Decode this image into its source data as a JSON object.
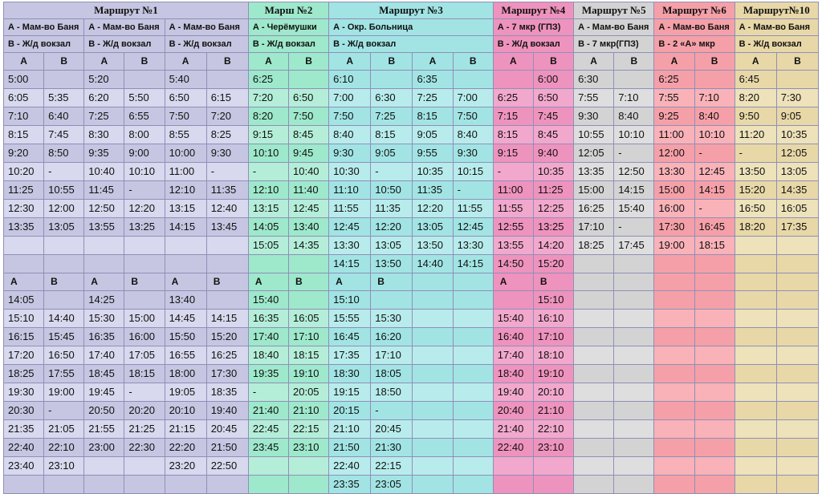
{
  "routes": [
    {
      "title": "Маршрут №1",
      "span": 6,
      "sub_a": [
        "А - Мам-во Баня",
        "А - Мам-во Баня",
        "А - Мам-во Баня"
      ],
      "sub_b": [
        "В - Ж/д вокзал",
        "В - Ж/д вокзал",
        "В - Ж/д вокзал"
      ]
    },
    {
      "title": "Марш №2",
      "span": 2,
      "sub_a": [
        "А - Черёмушки"
      ],
      "sub_b": [
        "В - Ж/д вокзал"
      ]
    },
    {
      "title": "Маршрут №3",
      "span": 4,
      "sub_a": [
        "А - Окр. Больница"
      ],
      "sub_b": [
        "В - Ж/д вокзал"
      ]
    },
    {
      "title": "Маршрут №4",
      "span": 2,
      "sub_a": [
        "А - 7 мкр (ГПЗ)"
      ],
      "sub_b": [
        "В - Ж/д вокзал"
      ]
    },
    {
      "title": "Маршрут №5",
      "span": 2,
      "sub_a": [
        "А - Мам-во Баня"
      ],
      "sub_b": [
        "В - 7 мкр(ГПЗ)"
      ]
    },
    {
      "title": "Маршрут №6",
      "span": 2,
      "sub_a": [
        "А - Мам-во Баня"
      ],
      "sub_b": [
        "В - 2 «А» мкр"
      ]
    },
    {
      "title": "Маршрут№10",
      "span": 2,
      "sub_a": [
        "А - Мам-во Баня"
      ],
      "sub_b": [
        "В - Ж/д вокзал"
      ]
    }
  ],
  "ab_row": [
    "А",
    "В",
    "А",
    "В",
    "А",
    "В",
    "А",
    "В",
    "А",
    "В",
    "А",
    "В",
    "А",
    "В",
    "А",
    "В",
    "А",
    "В",
    "А",
    "В"
  ],
  "morning": [
    [
      "5:00",
      "",
      "5:20",
      "",
      "5:40",
      "",
      "6:25",
      "",
      "6:10",
      "",
      "6:35",
      "",
      "",
      "6:00",
      "6:30",
      "",
      "6:25",
      "",
      "6:45",
      ""
    ],
    [
      "6:05",
      "5:35",
      "6:20",
      "5:50",
      "6:50",
      "6:15",
      "7:20",
      "6:50",
      "7:00",
      "6:30",
      "7:25",
      "7:00",
      "6:25",
      "6:50",
      "7:55",
      "7:10",
      "7:55",
      "7:10",
      "8:20",
      "7:30"
    ],
    [
      "7:10",
      "6:40",
      "7:25",
      "6:55",
      "7:50",
      "7:20",
      "8:20",
      "7:50",
      "7:50",
      "7:25",
      "8:15",
      "7:50",
      "7:15",
      "7:45",
      "9:30",
      "8:40",
      "9:25",
      "8:40",
      "9:50",
      "9:05"
    ],
    [
      "8:15",
      "7:45",
      "8:30",
      "8:00",
      "8:55",
      "8:25",
      "9:15",
      "8:45",
      "8:40",
      "8:15",
      "9:05",
      "8:40",
      "8:15",
      "8:45",
      "10:55",
      "10:10",
      "11:00",
      "10:10",
      "11:20",
      "10:35"
    ],
    [
      "9:20",
      "8:50",
      "9:35",
      "9:00",
      "10:00",
      "9:30",
      "10:10",
      "9:45",
      "9:30",
      "9:05",
      "9:55",
      "9:30",
      "9:15",
      "9:40",
      "12:05",
      "-",
      "12:00",
      "-",
      "-",
      "12:05"
    ],
    [
      "10:20",
      "-",
      "10:40",
      "10:10",
      "11:00",
      "-",
      "-",
      "10:40",
      "10:30",
      "-",
      "10:35",
      "10:15",
      "-",
      "10:35",
      "13:35",
      "12:50",
      "13:30",
      "12:45",
      "13:50",
      "13:05"
    ],
    [
      "11:25",
      "10:55",
      "11:45",
      "-",
      "12:10",
      "11:35",
      "12:10",
      "11:40",
      "11:10",
      "10:50",
      "11:35",
      "-",
      "11:00",
      "11:25",
      "15:00",
      "14:15",
      "15:00",
      "14:15",
      "15:20",
      "14:35"
    ],
    [
      "12:30",
      "12:00",
      "12:50",
      "12:20",
      "13:15",
      "12:40",
      "13:15",
      "12:45",
      "11:55",
      "11:35",
      "12:20",
      "11:55",
      "11:55",
      "12:25",
      "16:25",
      "15:40",
      "16:00",
      "-",
      "16:50",
      "16:05"
    ],
    [
      "13:35",
      "13:05",
      "13:55",
      "13:25",
      "14:15",
      "13:45",
      "14:05",
      "13:40",
      "12:45",
      "12:20",
      "13:05",
      "12:45",
      "12:55",
      "13:25",
      "17:10",
      "-",
      "17:30",
      "16:45",
      "18:20",
      "17:35"
    ],
    [
      "",
      "",
      "",
      "",
      "",
      "",
      "15:05",
      "14:35",
      "13:30",
      "13:05",
      "13:50",
      "13:30",
      "13:55",
      "14:20",
      "18:25",
      "17:45",
      "19:00",
      "18:15",
      "",
      ""
    ],
    [
      "",
      "",
      "",
      "",
      "",
      "",
      "",
      "",
      "14:15",
      "13:50",
      "14:40",
      "14:15",
      "14:50",
      "15:20",
      "",
      "",
      "",
      "",
      "",
      ""
    ]
  ],
  "ab_row2": [
    "А",
    "В",
    "А",
    "В",
    "А",
    "В",
    "А",
    "В",
    "А",
    "В",
    "",
    "",
    "А",
    "В",
    "",
    "",
    "",
    "",
    "",
    ""
  ],
  "afternoon": [
    [
      "14:05",
      "",
      "14:25",
      "",
      "13:40",
      "",
      "15:40",
      "",
      "15:10",
      "",
      "",
      "",
      "",
      "15:10",
      "",
      "",
      "",
      "",
      "",
      ""
    ],
    [
      "15:10",
      "14:40",
      "15:30",
      "15:00",
      "14:45",
      "14:15",
      "16:35",
      "16:05",
      "15:55",
      "15:30",
      "",
      "",
      "15:40",
      "16:10",
      "",
      "",
      "",
      "",
      "",
      ""
    ],
    [
      "16:15",
      "15:45",
      "16:35",
      "16:00",
      "15:50",
      "15:20",
      "17:40",
      "17:10",
      "16:45",
      "16:20",
      "",
      "",
      "16:40",
      "17:10",
      "",
      "",
      "",
      "",
      "",
      ""
    ],
    [
      "17:20",
      "16:50",
      "17:40",
      "17:05",
      "16:55",
      "16:25",
      "18:40",
      "18:15",
      "17:35",
      "17:10",
      "",
      "",
      "17:40",
      "18:10",
      "",
      "",
      "",
      "",
      "",
      ""
    ],
    [
      "18:25",
      "17:55",
      "18:45",
      "18:15",
      "18:00",
      "17:30",
      "19:35",
      "19:10",
      "18:30",
      "18:05",
      "",
      "",
      "18:40",
      "19:10",
      "",
      "",
      "",
      "",
      "",
      ""
    ],
    [
      "19:30",
      "19:00",
      "19:45",
      "-",
      "19:05",
      "18:35",
      "-",
      "20:05",
      "19:15",
      "18:50",
      "",
      "",
      "19:40",
      "20:10",
      "",
      "",
      "",
      "",
      "",
      ""
    ],
    [
      "20:30",
      "-",
      "20:50",
      "20:20",
      "20:10",
      "19:40",
      "21:40",
      "21:10",
      "20:15",
      "-",
      "",
      "",
      "20:40",
      "21:10",
      "",
      "",
      "",
      "",
      "",
      ""
    ],
    [
      "21:35",
      "21:05",
      "21:55",
      "21:25",
      "21:15",
      "20:45",
      "22:45",
      "22:15",
      "21:10",
      "20:45",
      "",
      "",
      "21:40",
      "22:10",
      "",
      "",
      "",
      "",
      "",
      ""
    ],
    [
      "22:40",
      "22:10",
      "23:00",
      "22:30",
      "22:20",
      "21:50",
      "23:45",
      "23:10",
      "21:50",
      "21:30",
      "",
      "",
      "22:40",
      "23:10",
      "",
      "",
      "",
      "",
      "",
      ""
    ],
    [
      "23:40",
      "23:10",
      "",
      "",
      "23:20",
      "22:50",
      "",
      "",
      "22:40",
      "22:15",
      "",
      "",
      "",
      "",
      "",
      "",
      "",
      "",
      "",
      ""
    ],
    [
      "",
      "",
      "",
      "",
      "",
      "",
      "",
      "",
      "23:35",
      "23:05",
      "",
      "",
      "",
      "",
      "",
      "",
      "",
      "",
      "",
      ""
    ]
  ]
}
